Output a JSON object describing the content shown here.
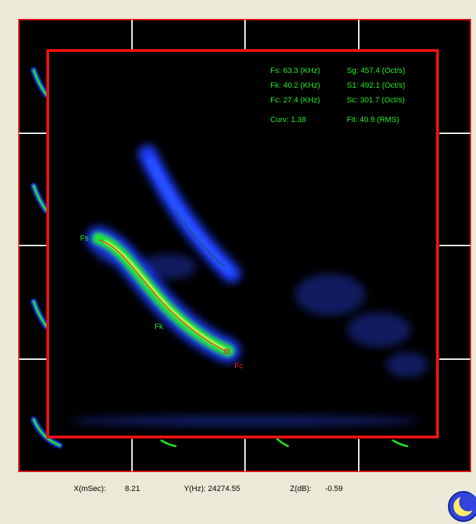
{
  "measurements": {
    "fs": "Fs: 63.3 (KHz)",
    "sg": "Sg:  457.4 (Oct/s)",
    "fk": "Fk: 40.2 (KHz)",
    "s1": "S1: 492.1 (Oct/s)",
    "fc": "Fc: 27.4 (KHz)",
    "sc": "Sc: 301.7 (Oct/s)",
    "curv": "Curv: 1.38",
    "fit": "Fit: 40.9 (RMS)"
  },
  "markers": {
    "fs": "Fs",
    "fk": "Fk",
    "fc": "Fc"
  },
  "status": {
    "x_label": "X(mSec):",
    "x_value": "8.21",
    "y": "Y(Hz): 24274.55",
    "z_label": "Z(dB):",
    "z_value": "-0.59"
  }
}
